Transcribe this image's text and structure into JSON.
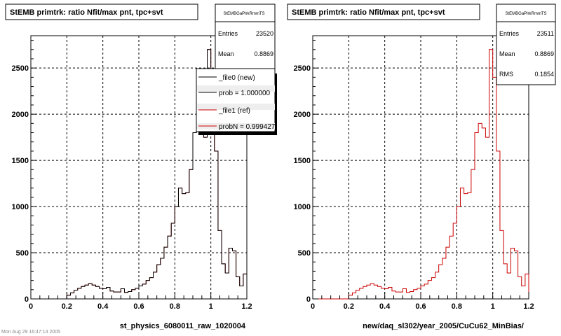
{
  "footer_text": "Mon Aug 29 16:47:14 2005",
  "panels": [
    {
      "title": "StEMB primtrk: ratio Nfit/max pnt, tpc+svt",
      "xlabel": "st_physics_6080011_raw_1020004",
      "stats": {
        "header": "StEMBGaPlrkRmmTS",
        "rows": [
          {
            "label": "Entries",
            "value": "23520"
          },
          {
            "label": "Mean",
            "value": "0.8869"
          }
        ]
      },
      "legend": [
        {
          "label": "_file0 (new)",
          "color": "#000000"
        },
        {
          "label": "prob = 1.000000",
          "color": "#000000"
        },
        {
          "label": "_file1 (ref)",
          "color": "#cc0000"
        },
        {
          "label": "probN = 0.999427",
          "color": "#cc0000"
        }
      ],
      "series_colors": [
        "#000000",
        "#cc0000"
      ]
    },
    {
      "title": "StEMB primtrk: ratio Nfit/max pnt, tpc+svt",
      "xlabel": "new/daq_sl302/year_2005/CuCu62_MinBias/",
      "stats": {
        "header": "StEMBGaPlrkRmmTS",
        "rows": [
          {
            "label": "Entries",
            "value": "23511"
          },
          {
            "label": "Mean",
            "value": "0.8869"
          },
          {
            "label": "RMS",
            "value": "0.1854"
          }
        ]
      },
      "legend": [],
      "series_colors": [
        "#cc0000"
      ]
    }
  ],
  "chart_data": {
    "type": "bar",
    "subtype": "histogram",
    "bin_width": 0.02,
    "xlim": [
      0,
      1.2
    ],
    "ylim": [
      0,
      2850
    ],
    "xticks": [
      0,
      0.2,
      0.4,
      0.6,
      0.8,
      1,
      1.2
    ],
    "xtick_labels": [
      "0",
      "0.2",
      "0.4",
      "0.6",
      "0.8",
      "1",
      "1.2"
    ],
    "yticks": [
      0,
      500,
      1000,
      1500,
      2000,
      2500
    ],
    "ytick_labels": [
      "0",
      "500",
      "1000",
      "1500",
      "2000",
      "2500"
    ],
    "grid": true,
    "bin_left_edges": [
      0,
      0.02,
      0.04,
      0.06,
      0.08,
      0.1,
      0.12,
      0.14,
      0.16,
      0.18,
      0.2,
      0.22,
      0.24,
      0.26,
      0.28,
      0.3,
      0.32,
      0.34,
      0.36,
      0.38,
      0.4,
      0.42,
      0.44,
      0.46,
      0.48,
      0.5,
      0.52,
      0.54,
      0.56,
      0.58,
      0.6,
      0.62,
      0.64,
      0.66,
      0.68,
      0.7,
      0.72,
      0.74,
      0.76,
      0.78,
      0.8,
      0.82,
      0.84,
      0.86,
      0.88,
      0.9,
      0.92,
      0.94,
      0.96,
      0.98,
      1,
      1.02,
      1.04,
      1.06,
      1.08,
      1.1,
      1.12,
      1.14,
      1.16,
      1.18
    ],
    "series": [
      {
        "values": [
          0,
          0,
          0,
          0,
          0,
          0,
          0,
          0,
          0,
          0,
          40,
          65,
          95,
          115,
          135,
          150,
          165,
          150,
          135,
          115,
          110,
          125,
          85,
          75,
          75,
          110,
          70,
          80,
          100,
          115,
          140,
          160,
          200,
          230,
          290,
          370,
          440,
          560,
          680,
          820,
          1000,
          1200,
          1140,
          1150,
          1400,
          1800,
          1900,
          1850,
          1750,
          2700,
          2400,
          1600,
          740,
          380,
          280,
          550,
          520,
          240,
          140,
          270
        ]
      },
      {
        "values": [
          0,
          0,
          0,
          0,
          0,
          0,
          0,
          0,
          0,
          0,
          40,
          65,
          95,
          115,
          135,
          150,
          165,
          150,
          135,
          115,
          110,
          125,
          85,
          75,
          75,
          110,
          70,
          80,
          100,
          115,
          140,
          160,
          200,
          230,
          290,
          370,
          440,
          560,
          680,
          820,
          1000,
          1200,
          1140,
          1150,
          1400,
          1800,
          1900,
          1850,
          1750,
          2700,
          2400,
          1600,
          740,
          380,
          280,
          550,
          520,
          240,
          140,
          270
        ]
      }
    ]
  }
}
